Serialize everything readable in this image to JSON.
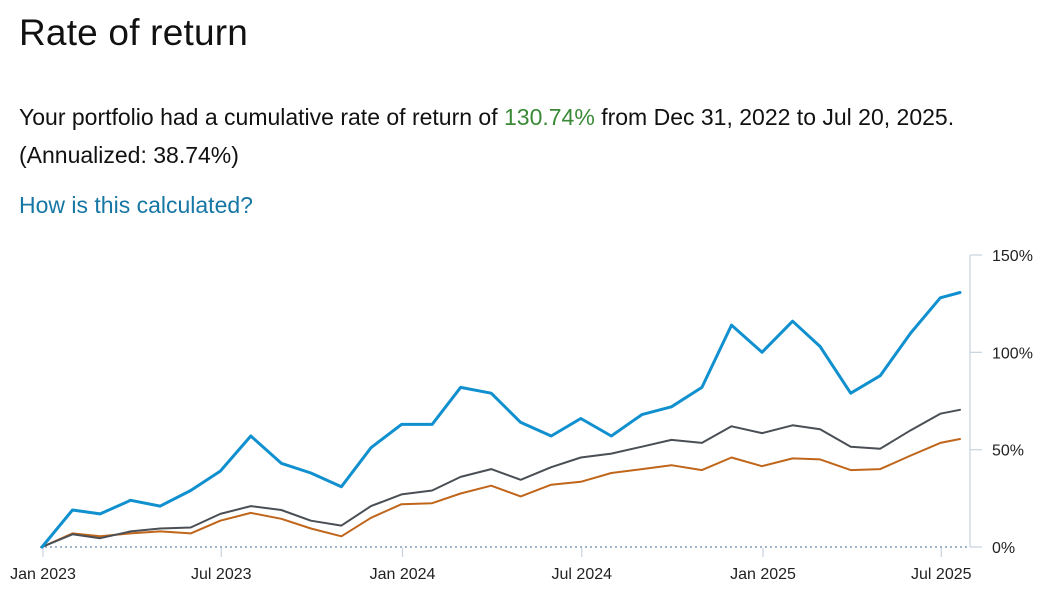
{
  "header": {
    "title": "Rate of return"
  },
  "summary": {
    "prefix": "Your portfolio had a cumulative rate of return of ",
    "cumulative_return": "130.74%",
    "middle": " from Dec 31, 2022 to Jul 20, 2025. (Annualized: 38.74%)"
  },
  "help_link": {
    "label": "How is this calculated?"
  },
  "colors": {
    "portfolio": "#1190cf",
    "benchmark_dark": "#4a4f55",
    "benchmark_orange": "#c0661b",
    "gain_text": "#3a8a37",
    "link": "#1777a4",
    "axis": "#c9d3de",
    "baseline_dots": "#9fb4c6"
  },
  "chart_data": {
    "type": "line",
    "x": [
      "2022-12-31",
      "2023-01-31",
      "2023-02-28",
      "2023-03-31",
      "2023-04-30",
      "2023-05-31",
      "2023-06-30",
      "2023-07-31",
      "2023-08-31",
      "2023-09-30",
      "2023-10-31",
      "2023-11-30",
      "2023-12-31",
      "2024-01-31",
      "2024-02-29",
      "2024-03-31",
      "2024-04-30",
      "2024-05-31",
      "2024-06-30",
      "2024-07-31",
      "2024-08-31",
      "2024-09-30",
      "2024-10-31",
      "2024-11-30",
      "2024-12-31",
      "2025-01-31",
      "2025-02-28",
      "2025-03-31",
      "2025-04-30",
      "2025-05-31",
      "2025-06-30",
      "2025-07-20"
    ],
    "x_ticks": [
      "Jan 2023",
      "Jul 2023",
      "Jan 2024",
      "Jul 2024",
      "Jan 2025",
      "Jul 2025"
    ],
    "x_tick_dates": [
      "2023-01-01",
      "2023-07-01",
      "2024-01-01",
      "2024-07-01",
      "2025-01-01",
      "2025-07-01"
    ],
    "y_ticks": [
      "0%",
      "50%",
      "100%",
      "150%"
    ],
    "y_tick_values": [
      0,
      50,
      100,
      150
    ],
    "ylim": [
      0,
      150
    ],
    "y_axis_position": "right",
    "grid": false,
    "legend": "none",
    "series": [
      {
        "color": "#1190cf",
        "values": [
          0,
          19,
          17,
          24,
          21,
          29,
          39,
          57,
          43,
          38,
          31,
          51,
          63,
          63,
          82,
          79,
          64,
          57,
          66,
          57,
          68,
          72,
          82,
          114,
          100,
          116,
          103,
          79,
          88,
          110,
          128,
          130.74
        ]
      },
      {
        "color": "#4a4f55",
        "values": [
          0,
          6.5,
          4.5,
          8,
          9.5,
          10,
          17,
          21,
          19,
          13.5,
          11,
          21,
          27,
          29,
          36,
          40,
          34.5,
          41,
          46,
          48,
          51.5,
          55,
          53.5,
          62,
          58.5,
          62.5,
          60.5,
          51.5,
          50.5,
          60,
          68.5,
          70.5
        ]
      },
      {
        "color": "#c0661b",
        "values": [
          0,
          7,
          5.5,
          7,
          8,
          7,
          13.5,
          17.5,
          14.5,
          9.5,
          5.5,
          15,
          22,
          22.5,
          27.5,
          31.5,
          26,
          32,
          33.5,
          38,
          40,
          42,
          39.5,
          46,
          41.5,
          45.5,
          45,
          39.5,
          40,
          47,
          53.5,
          55.5
        ]
      }
    ]
  }
}
